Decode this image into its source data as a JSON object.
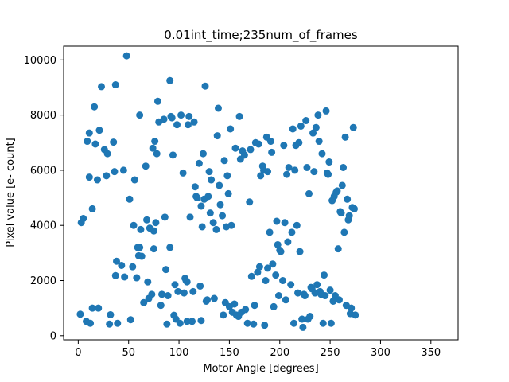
{
  "chart_data": {
    "type": "scatter",
    "title": "0.01int_time;235num_of_frames",
    "xlabel": "Motor Angle [degrees]",
    "ylabel": "Pixel value [e- count]",
    "xlim": [
      -14.5,
      377
    ],
    "ylim": [
      -150,
      10500
    ],
    "xticks": [
      0,
      50,
      100,
      150,
      200,
      250,
      300,
      350
    ],
    "yticks": [
      0,
      2000,
      4000,
      6000,
      8000,
      10000
    ],
    "tick_labels_x": [
      "0",
      "50",
      "100",
      "150",
      "200",
      "250",
      "300",
      "350"
    ],
    "tick_labels_y": [
      "0",
      "2000",
      "4000",
      "6000",
      "8000",
      "10000"
    ],
    "grid": false,
    "marker_color": "#1f77b4",
    "points": [
      [
        2,
        780
      ],
      [
        3,
        4100
      ],
      [
        5,
        4250
      ],
      [
        8,
        520
      ],
      [
        9,
        7050
      ],
      [
        11,
        5750
      ],
      [
        11,
        7350
      ],
      [
        12,
        450
      ],
      [
        14,
        1000
      ],
      [
        14,
        4600
      ],
      [
        16,
        8300
      ],
      [
        17,
        6950
      ],
      [
        19,
        5650
      ],
      [
        20,
        1000
      ],
      [
        21,
        7450
      ],
      [
        23,
        9030
      ],
      [
        26,
        6750
      ],
      [
        28,
        5800
      ],
      [
        29,
        6600
      ],
      [
        31,
        420
      ],
      [
        32,
        760
      ],
      [
        35,
        7020
      ],
      [
        36,
        5950
      ],
      [
        37,
        9100
      ],
      [
        37,
        2180
      ],
      [
        38,
        2700
      ],
      [
        39,
        450
      ],
      [
        43,
        2550
      ],
      [
        45,
        6000
      ],
      [
        46,
        2130
      ],
      [
        48,
        10150
      ],
      [
        51,
        4950
      ],
      [
        52,
        580
      ],
      [
        54,
        2500
      ],
      [
        55,
        4000
      ],
      [
        56,
        5650
      ],
      [
        58,
        2100
      ],
      [
        59,
        3200
      ],
      [
        60,
        2900
      ],
      [
        61,
        8000
      ],
      [
        61,
        3200
      ],
      [
        62,
        3850
      ],
      [
        63,
        2880
      ],
      [
        65,
        1200
      ],
      [
        67,
        6150
      ],
      [
        68,
        4200
      ],
      [
        69,
        1950
      ],
      [
        70,
        1350
      ],
      [
        71,
        3900
      ],
      [
        73,
        1500
      ],
      [
        74,
        6800
      ],
      [
        75,
        3800
      ],
      [
        75,
        3150
      ],
      [
        76,
        7050
      ],
      [
        77,
        4100
      ],
      [
        78,
        6600
      ],
      [
        79,
        8500
      ],
      [
        80,
        7750
      ],
      [
        82,
        1100
      ],
      [
        83,
        1500
      ],
      [
        85,
        7850
      ],
      [
        86,
        4300
      ],
      [
        87,
        2400
      ],
      [
        88,
        420
      ],
      [
        89,
        1450
      ],
      [
        91,
        9250
      ],
      [
        91,
        3200
      ],
      [
        92,
        7950
      ],
      [
        93,
        7900
      ],
      [
        94,
        6550
      ],
      [
        95,
        740
      ],
      [
        96,
        1850
      ],
      [
        97,
        600
      ],
      [
        98,
        7650
      ],
      [
        99,
        1600
      ],
      [
        101,
        450
      ],
      [
        102,
        8000
      ],
      [
        104,
        5900
      ],
      [
        105,
        1550
      ],
      [
        106,
        2080
      ],
      [
        107,
        2000
      ],
      [
        108,
        1950
      ],
      [
        108,
        520
      ],
      [
        109,
        7650
      ],
      [
        110,
        7950
      ],
      [
        111,
        4300
      ],
      [
        113,
        520
      ],
      [
        114,
        1600
      ],
      [
        115,
        7750
      ],
      [
        116,
        5400
      ],
      [
        117,
        5050
      ],
      [
        118,
        5000
      ],
      [
        120,
        6250
      ],
      [
        121,
        1800
      ],
      [
        122,
        4700
      ],
      [
        122,
        550
      ],
      [
        123,
        3950
      ],
      [
        124,
        6600
      ],
      [
        125,
        4950
      ],
      [
        126,
        9050
      ],
      [
        127,
        1250
      ],
      [
        128,
        1300
      ],
      [
        129,
        5050
      ],
      [
        130,
        5950
      ],
      [
        131,
        4450
      ],
      [
        132,
        5650
      ],
      [
        134,
        4100
      ],
      [
        135,
        1350
      ],
      [
        137,
        3850
      ],
      [
        138,
        7250
      ],
      [
        139,
        8250
      ],
      [
        140,
        5450
      ],
      [
        141,
        4750
      ],
      [
        143,
        4350
      ],
      [
        144,
        750
      ],
      [
        145,
        6350
      ],
      [
        146,
        1200
      ],
      [
        147,
        3950
      ],
      [
        148,
        5800
      ],
      [
        149,
        5150
      ],
      [
        150,
        1050
      ],
      [
        151,
        7500
      ],
      [
        152,
        4000
      ],
      [
        153,
        850
      ],
      [
        155,
        1150
      ],
      [
        156,
        6800
      ],
      [
        157,
        750
      ],
      [
        159,
        700
      ],
      [
        160,
        7950
      ],
      [
        161,
        6400
      ],
      [
        162,
        850
      ],
      [
        163,
        6700
      ],
      [
        165,
        6550
      ],
      [
        166,
        950
      ],
      [
        168,
        450
      ],
      [
        170,
        4850
      ],
      [
        171,
        6750
      ],
      [
        172,
        2150
      ],
      [
        174,
        420
      ],
      [
        175,
        1100
      ],
      [
        176,
        7000
      ],
      [
        178,
        2300
      ],
      [
        179,
        6950
      ],
      [
        180,
        2500
      ],
      [
        181,
        5800
      ],
      [
        183,
        6150
      ],
      [
        184,
        6000
      ],
      [
        185,
        380
      ],
      [
        186,
        2000
      ],
      [
        187,
        7200
      ],
      [
        188,
        5950
      ],
      [
        188,
        2450
      ],
      [
        190,
        3750
      ],
      [
        191,
        7050
      ],
      [
        192,
        6650
      ],
      [
        193,
        2600
      ],
      [
        194,
        1050
      ],
      [
        196,
        2200
      ],
      [
        197,
        4150
      ],
      [
        198,
        3300
      ],
      [
        199,
        1450
      ],
      [
        200,
        3100
      ],
      [
        201,
        3050
      ],
      [
        203,
        2000
      ],
      [
        204,
        6900
      ],
      [
        205,
        4100
      ],
      [
        206,
        1300
      ],
      [
        207,
        5850
      ],
      [
        208,
        3400
      ],
      [
        209,
        6100
      ],
      [
        211,
        1850
      ],
      [
        212,
        3750
      ],
      [
        213,
        7500
      ],
      [
        214,
        450
      ],
      [
        215,
        6000
      ],
      [
        216,
        6900
      ],
      [
        217,
        4000
      ],
      [
        218,
        1550
      ],
      [
        219,
        7000
      ],
      [
        220,
        3050
      ],
      [
        221,
        7600
      ],
      [
        222,
        600
      ],
      [
        223,
        300
      ],
      [
        224,
        1500
      ],
      [
        225,
        1450
      ],
      [
        226,
        7800
      ],
      [
        227,
        6100
      ],
      [
        228,
        600
      ],
      [
        229,
        5150
      ],
      [
        230,
        700
      ],
      [
        231,
        1750
      ],
      [
        232,
        1700
      ],
      [
        233,
        7350
      ],
      [
        234,
        5950
      ],
      [
        235,
        1550
      ],
      [
        236,
        7550
      ],
      [
        237,
        1850
      ],
      [
        238,
        8000
      ],
      [
        239,
        7050
      ],
      [
        240,
        1600
      ],
      [
        241,
        1500
      ],
      [
        242,
        6600
      ],
      [
        243,
        450
      ],
      [
        244,
        2200
      ],
      [
        245,
        1450
      ],
      [
        246,
        8150
      ],
      [
        247,
        5900
      ],
      [
        248,
        5850
      ],
      [
        249,
        6300
      ],
      [
        250,
        1650
      ],
      [
        251,
        450
      ],
      [
        252,
        4900
      ],
      [
        253,
        1250
      ],
      [
        254,
        5050
      ],
      [
        255,
        1450
      ],
      [
        256,
        5200
      ],
      [
        257,
        5250
      ],
      [
        258,
        3150
      ],
      [
        259,
        1300
      ],
      [
        260,
        4500
      ],
      [
        261,
        4450
      ],
      [
        262,
        5450
      ],
      [
        263,
        6100
      ],
      [
        264,
        3750
      ],
      [
        265,
        7200
      ],
      [
        266,
        1100
      ],
      [
        267,
        4950
      ],
      [
        268,
        4200
      ],
      [
        269,
        4350
      ],
      [
        270,
        800
      ],
      [
        271,
        1000
      ],
      [
        272,
        4650
      ],
      [
        273,
        7550
      ],
      [
        274,
        4600
      ],
      [
        275,
        750
      ]
    ]
  }
}
